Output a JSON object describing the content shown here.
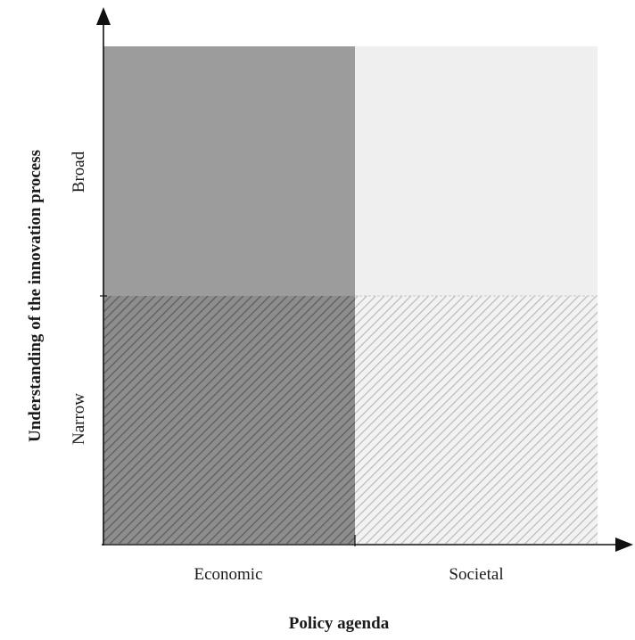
{
  "diagram": {
    "y_axis": {
      "title": "Understanding of the innovation process",
      "levels": [
        "Broad",
        "Narrow"
      ]
    },
    "x_axis": {
      "title": "Policy agenda",
      "categories": [
        "Economic",
        "Societal"
      ]
    },
    "quadrants": [
      {
        "id": "economic-broad",
        "fill": "#9c9c9c",
        "hatched": false
      },
      {
        "id": "societal-broad",
        "fill": "#efefef",
        "hatched": false
      },
      {
        "id": "economic-narrow",
        "fill": "#8d8d8d",
        "hatched": true,
        "hatch_color": "#5a5a5a"
      },
      {
        "id": "societal-narrow",
        "fill": "#f2f2f2",
        "hatched": true,
        "hatch_color": "#b0b0b0"
      }
    ]
  }
}
